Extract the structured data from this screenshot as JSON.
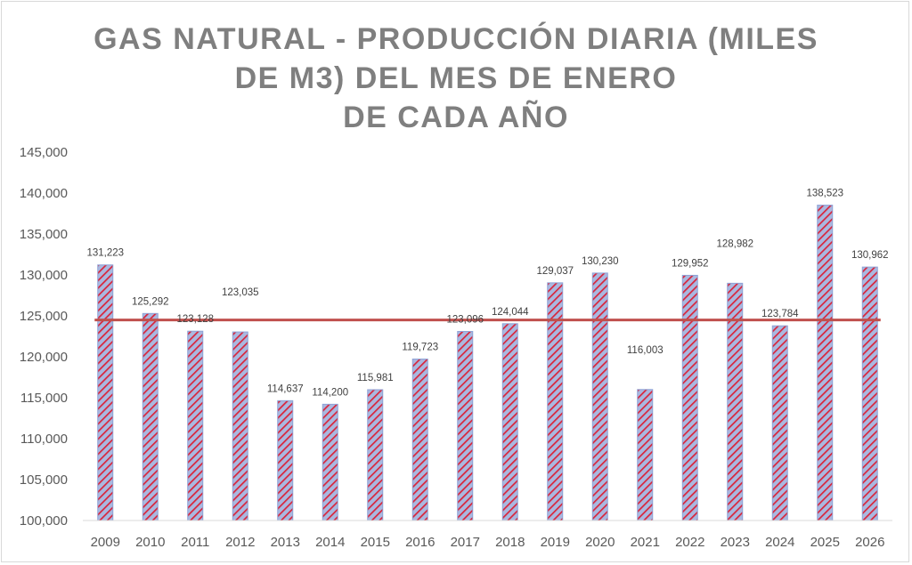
{
  "chart_data": {
    "type": "bar",
    "title_lines": [
      "GAS NATURAL - PRODUCCIÓN DIARIA (MILES",
      "DE M3) DEL MES DE ENERO",
      "DE CADA AÑO"
    ],
    "categories": [
      "2009",
      "2010",
      "2011",
      "2012",
      "2013",
      "2014",
      "2015",
      "2016",
      "2017",
      "2018",
      "2019",
      "2020",
      "2021",
      "2022",
      "2023",
      "2024",
      "2025",
      "2026"
    ],
    "values": [
      131223,
      125292,
      123128,
      123035,
      114637,
      114200,
      115981,
      119723,
      123096,
      124044,
      129037,
      130230,
      116003,
      129952,
      128982,
      123784,
      138523,
      130962
    ],
    "value_labels": [
      "131,223",
      "125,292",
      "123,128",
      "123,035",
      "114,637",
      "114,200",
      "115,981",
      "119,723",
      "123,096",
      "124,044",
      "129,037",
      "130,230",
      "116,003",
      "129,952",
      "128,982",
      "123,784",
      "138,523",
      "130,962"
    ],
    "label_offsets": [
      0,
      0,
      0,
      1,
      0,
      0,
      0,
      0,
      0,
      0,
      0,
      0,
      1,
      0,
      1,
      0,
      0,
      0
    ],
    "ylim": [
      100000,
      145000
    ],
    "yticks": [
      100000,
      105000,
      110000,
      115000,
      120000,
      125000,
      130000,
      135000,
      140000,
      145000
    ],
    "ytick_labels": [
      "100,000",
      "105,000",
      "110,000",
      "115,000",
      "120,000",
      "125,000",
      "130,000",
      "135,000",
      "140,000",
      "145,000"
    ],
    "average_line": 124500,
    "xlabel": "",
    "ylabel": "",
    "colors": {
      "bar_stripe": "#d9243a",
      "bar_base": "#a9b8e0",
      "bar_border": "#8ea2d6",
      "average_line": "#c0504d",
      "axis": "#d9d9d9"
    }
  }
}
